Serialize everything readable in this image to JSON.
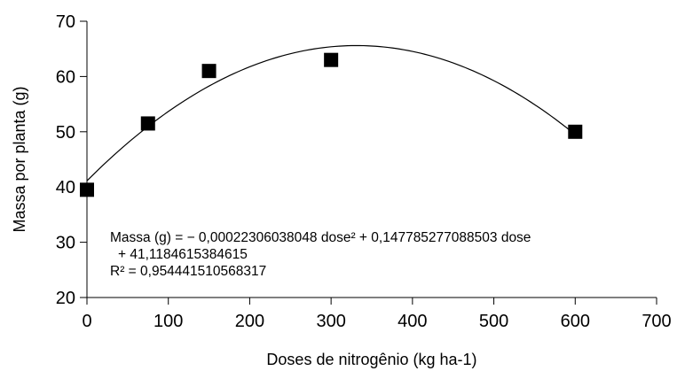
{
  "chart_data": {
    "type": "scatter",
    "xlabel": "Doses de nitrogênio (kg ha-1)",
    "ylabel": "Massa por planta (g)",
    "xlim": [
      0,
      700
    ],
    "ylim": [
      20,
      70
    ],
    "xticks": [
      0,
      100,
      200,
      300,
      400,
      500,
      600,
      700
    ],
    "yticks": [
      20,
      30,
      40,
      50,
      60,
      70
    ],
    "grid": false,
    "series": [
      {
        "marker": "square",
        "color": "#000000",
        "points": [
          {
            "x": 0,
            "y": 39.5
          },
          {
            "x": 75,
            "y": 51.5
          },
          {
            "x": 150,
            "y": 61
          },
          {
            "x": 300,
            "y": 63
          },
          {
            "x": 600,
            "y": 50
          }
        ]
      }
    ],
    "trendline": {
      "type": "quadratic",
      "a": -0.00022306038048,
      "b": 0.147785277088503,
      "c": 41.1184615384615,
      "x_range": [
        0,
        600
      ],
      "color": "#000000"
    },
    "annotations": {
      "equation_line1": "Massa (g) = − 0,00022306038048 dose² + 0,147785277088503 dose",
      "equation_line2": "+ 41,1184615384615",
      "r2_line": "R² = 0,954441510568317"
    }
  }
}
